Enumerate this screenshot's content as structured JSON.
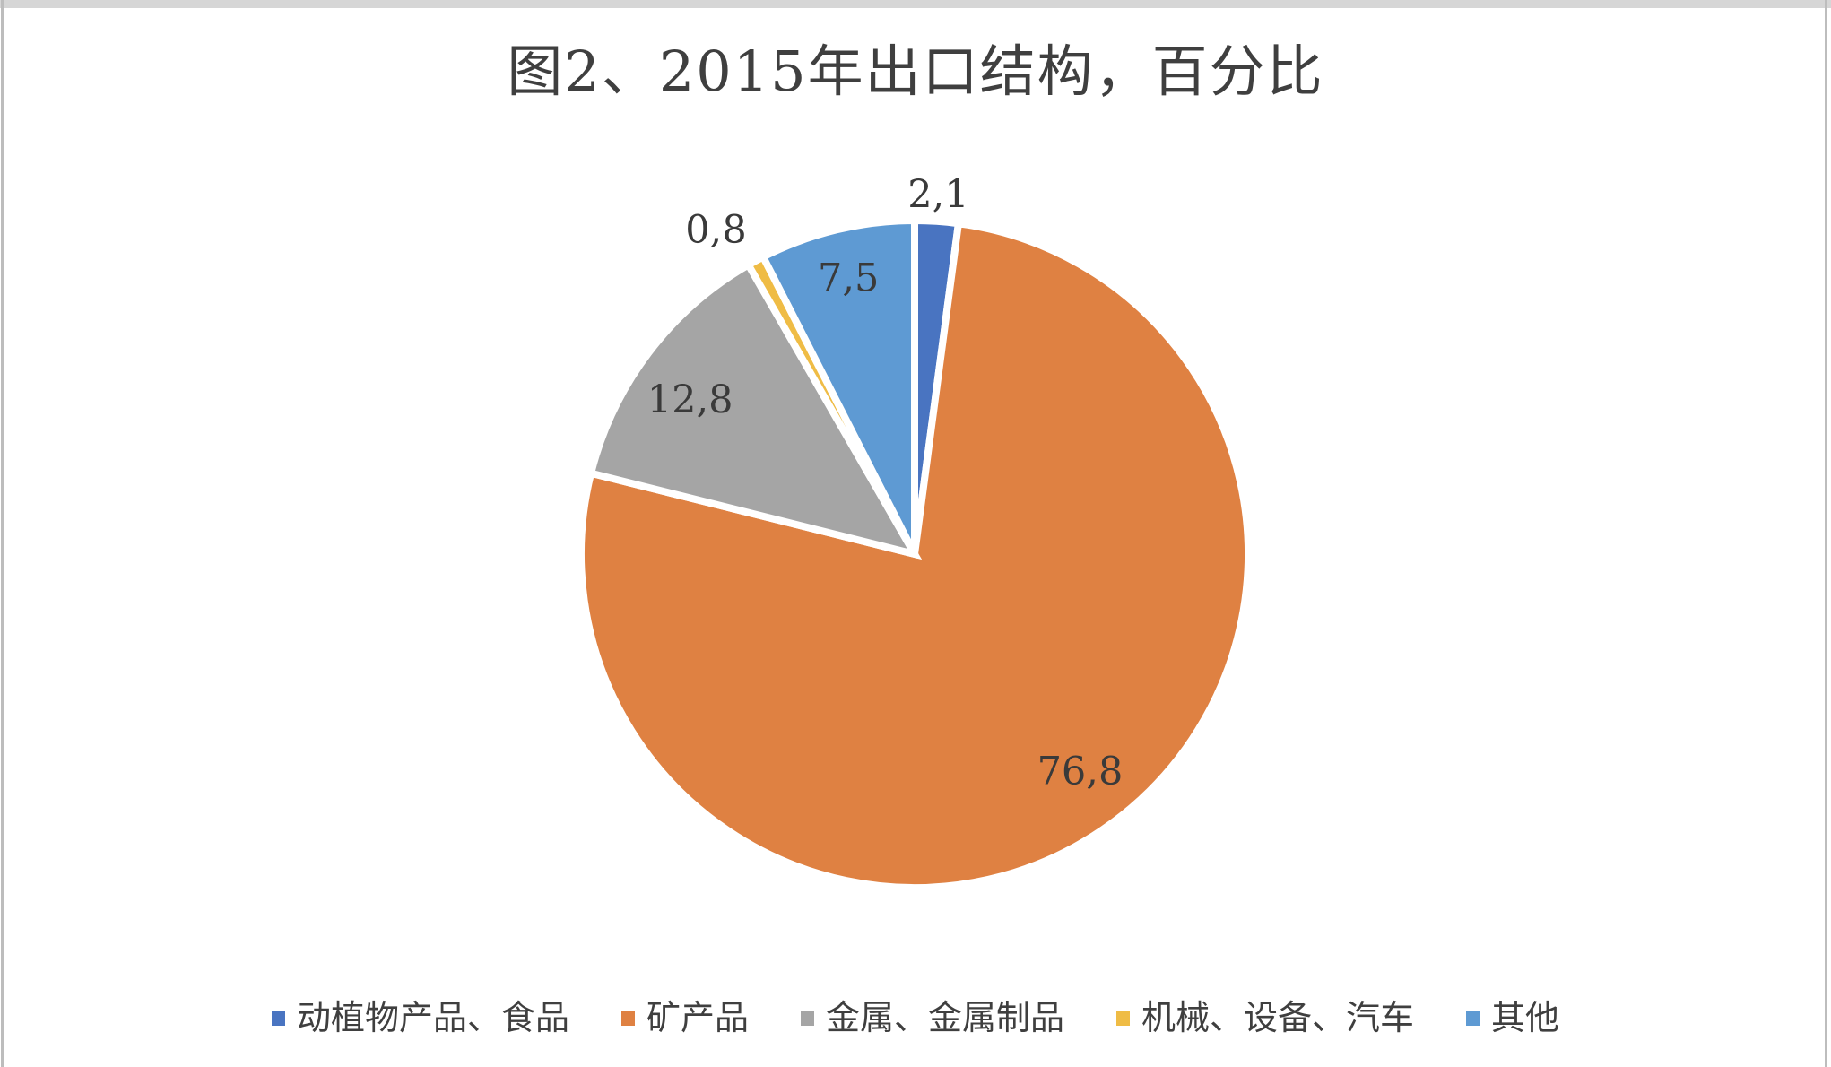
{
  "page": {
    "background": "#FFFFFF",
    "top_border_color": "#D6D6D6",
    "side_border_color": "#BDBDBD",
    "text_color": "#3F3F3F"
  },
  "chart_data": {
    "type": "pie",
    "title": "图2、2015年出口结构，百分比",
    "value_unit": "percent",
    "decimal_separator": ",",
    "start_angle_deg": 0,
    "direction": "clockwise",
    "grid": false,
    "legend_position": "bottom",
    "slice_separator_color": "#FFFFFF",
    "label_color": "#3A3A3A",
    "slices": [
      {
        "name": "动植物产品、食品",
        "value": 2.1,
        "label": "2,1",
        "color": "#4974C1",
        "label_placement": "outside"
      },
      {
        "name": "矿产品",
        "value": 76.8,
        "label": "76,8",
        "color": "#DF8142",
        "label_placement": "inside"
      },
      {
        "name": "金属、金属制品",
        "value": 12.8,
        "label": "12,8",
        "color": "#A5A5A5",
        "label_placement": "inside"
      },
      {
        "name": "机械、设备、汽车",
        "value": 0.8,
        "label": "0,8",
        "color": "#EFBC45",
        "label_placement": "outside"
      },
      {
        "name": "其他",
        "value": 7.5,
        "label": "7,5",
        "color": "#5E9AD3",
        "label_placement": "inside"
      }
    ]
  }
}
